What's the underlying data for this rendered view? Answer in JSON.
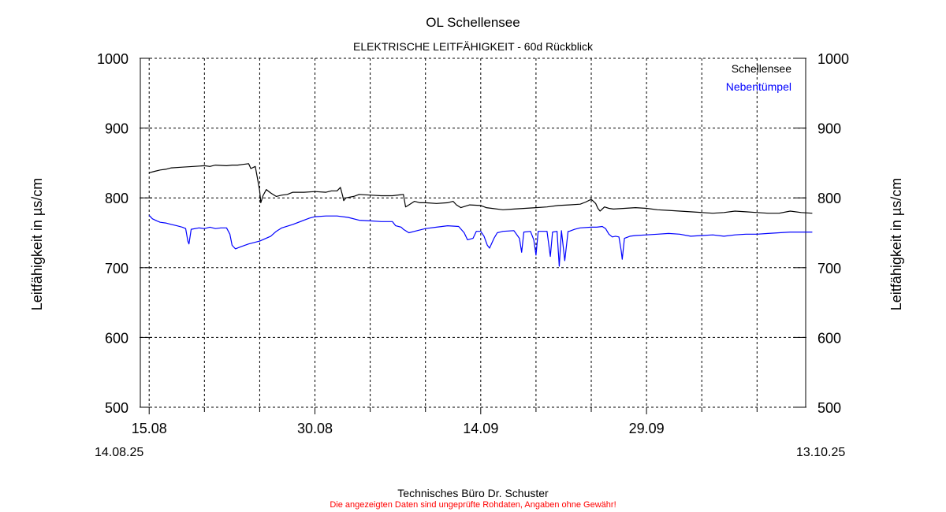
{
  "chart_data": {
    "type": "line",
    "title": "OL Schellensee",
    "subtitle": "ELEKTRISCHE LEITFÄHIGKEIT - 60d Rückblick",
    "ylabel": "Leitfähigkeit in µs/cm",
    "ylabel_right": "Leitfähigkeit in µs/cm",
    "ylim": [
      500,
      1000
    ],
    "yticks": [
      500,
      600,
      700,
      800,
      900,
      1000
    ],
    "xlim": [
      -0.8,
      59.4
    ],
    "x_unit": "days from 15.08",
    "xtick_labels": [
      {
        "x": 0,
        "label": "15.08"
      },
      {
        "x": 15,
        "label": "30.08"
      },
      {
        "x": 30,
        "label": "14.09"
      },
      {
        "x": 45,
        "label": "29.09"
      }
    ],
    "minor_ticks": [
      5,
      10,
      20,
      25,
      35,
      40,
      50,
      55
    ],
    "date_range": {
      "start": "14.08.25",
      "end": "13.10.25"
    },
    "grid": true,
    "legend_position": "top-right",
    "series": [
      {
        "name": "Schellensee",
        "color": "#000000",
        "points": [
          [
            0,
            836
          ],
          [
            0.5,
            838
          ],
          [
            1,
            840
          ],
          [
            1.5,
            841
          ],
          [
            2,
            843
          ],
          [
            3,
            844
          ],
          [
            4,
            845
          ],
          [
            5,
            846
          ],
          [
            5.5,
            845
          ],
          [
            6,
            847
          ],
          [
            7,
            846
          ],
          [
            7.5,
            847
          ],
          [
            8,
            847
          ],
          [
            8.5,
            848
          ],
          [
            9,
            849
          ],
          [
            9.2,
            842
          ],
          [
            9.6,
            845
          ],
          [
            9.8,
            828
          ],
          [
            10,
            810
          ],
          [
            10.1,
            793
          ],
          [
            10.3,
            803
          ],
          [
            10.6,
            812
          ],
          [
            11,
            807
          ],
          [
            11.5,
            802
          ],
          [
            12,
            804
          ],
          [
            12.5,
            805
          ],
          [
            13,
            808
          ],
          [
            14,
            808
          ],
          [
            15,
            809
          ],
          [
            16,
            808
          ],
          [
            16.5,
            810
          ],
          [
            17,
            810
          ],
          [
            17.3,
            815
          ],
          [
            17.5,
            803
          ],
          [
            17.6,
            796
          ],
          [
            17.8,
            800
          ],
          [
            18.5,
            802
          ],
          [
            19,
            805
          ],
          [
            20,
            804
          ],
          [
            21,
            803
          ],
          [
            22,
            803
          ],
          [
            23,
            805
          ],
          [
            23.1,
            796
          ],
          [
            23.2,
            787
          ],
          [
            23.5,
            790
          ],
          [
            24,
            795
          ],
          [
            24.5,
            793
          ],
          [
            25,
            793
          ],
          [
            26,
            792
          ],
          [
            27,
            793
          ],
          [
            27.5,
            795
          ],
          [
            27.8,
            790
          ],
          [
            28.2,
            786
          ],
          [
            29,
            790
          ],
          [
            30,
            789
          ],
          [
            30.5,
            786
          ],
          [
            31,
            785
          ],
          [
            32,
            783
          ],
          [
            33,
            784
          ],
          [
            34,
            785
          ],
          [
            35,
            786
          ],
          [
            36,
            787
          ],
          [
            37,
            789
          ],
          [
            38,
            790
          ],
          [
            39,
            791
          ],
          [
            39.5,
            794
          ],
          [
            40,
            798
          ],
          [
            40.4,
            792
          ],
          [
            40.6,
            785
          ],
          [
            40.8,
            781
          ],
          [
            41.2,
            787
          ],
          [
            41.6,
            785
          ],
          [
            42,
            784
          ],
          [
            43,
            785
          ],
          [
            44,
            786
          ],
          [
            45,
            785
          ],
          [
            46,
            783
          ],
          [
            47,
            782
          ],
          [
            48,
            781
          ],
          [
            49,
            780
          ],
          [
            50,
            779
          ],
          [
            51,
            778
          ],
          [
            52,
            779
          ],
          [
            53,
            781
          ],
          [
            54,
            780
          ],
          [
            55,
            779
          ],
          [
            56,
            778
          ],
          [
            57,
            778
          ],
          [
            58,
            781
          ],
          [
            59,
            779
          ],
          [
            60,
            778
          ]
        ]
      },
      {
        "name": "Nebentümpel",
        "color": "#0000ff",
        "points": [
          [
            0,
            775
          ],
          [
            0.3,
            770
          ],
          [
            0.7,
            767
          ],
          [
            1,
            765
          ],
          [
            1.5,
            764
          ],
          [
            2,
            762
          ],
          [
            2.5,
            760
          ],
          [
            3,
            758
          ],
          [
            3.3,
            756
          ],
          [
            3.5,
            738
          ],
          [
            3.6,
            734
          ],
          [
            3.8,
            755
          ],
          [
            4.5,
            757
          ],
          [
            5,
            756
          ],
          [
            5.5,
            758
          ],
          [
            6,
            756
          ],
          [
            6.5,
            757
          ],
          [
            7,
            757
          ],
          [
            7.3,
            748
          ],
          [
            7.5,
            732
          ],
          [
            7.8,
            727
          ],
          [
            8.3,
            730
          ],
          [
            9,
            734
          ],
          [
            10,
            738
          ],
          [
            11,
            745
          ],
          [
            11.5,
            752
          ],
          [
            12,
            757
          ],
          [
            13,
            762
          ],
          [
            14,
            768
          ],
          [
            14.5,
            771
          ],
          [
            15,
            773
          ],
          [
            16,
            774
          ],
          [
            17,
            774
          ],
          [
            18,
            772
          ],
          [
            19,
            768
          ],
          [
            20,
            767
          ],
          [
            21,
            766
          ],
          [
            22,
            766
          ],
          [
            22.3,
            760
          ],
          [
            22.8,
            758
          ],
          [
            23,
            755
          ],
          [
            23.5,
            750
          ],
          [
            24,
            752
          ],
          [
            25,
            756
          ],
          [
            26,
            758
          ],
          [
            27,
            760
          ],
          [
            28,
            759
          ],
          [
            28.5,
            750
          ],
          [
            28.8,
            740
          ],
          [
            29.3,
            742
          ],
          [
            29.6,
            752
          ],
          [
            30,
            752
          ],
          [
            30.3,
            745
          ],
          [
            30.6,
            732
          ],
          [
            30.8,
            728
          ],
          [
            31.2,
            742
          ],
          [
            31.5,
            750
          ],
          [
            32,
            752
          ],
          [
            33,
            753
          ],
          [
            33.5,
            742
          ],
          [
            33.7,
            722
          ],
          [
            33.9,
            751
          ],
          [
            34.5,
            752
          ],
          [
            34.8,
            740
          ],
          [
            35,
            718
          ],
          [
            35.2,
            752
          ],
          [
            36,
            752
          ],
          [
            36.3,
            716
          ],
          [
            36.5,
            751
          ],
          [
            36.9,
            752
          ],
          [
            37.1,
            702
          ],
          [
            37.3,
            753
          ],
          [
            37.6,
            710
          ],
          [
            37.9,
            752
          ],
          [
            38,
            752
          ],
          [
            38.5,
            755
          ],
          [
            39,
            757
          ],
          [
            40,
            758
          ],
          [
            40.5,
            758
          ],
          [
            41,
            759
          ],
          [
            41.3,
            756
          ],
          [
            41.6,
            748
          ],
          [
            41.9,
            744
          ],
          [
            42.2,
            745
          ],
          [
            42.5,
            744
          ],
          [
            42.7,
            725
          ],
          [
            42.8,
            712
          ],
          [
            43,
            742
          ],
          [
            43.5,
            745
          ],
          [
            44,
            746
          ],
          [
            45,
            747
          ],
          [
            46,
            748
          ],
          [
            47,
            749
          ],
          [
            48,
            748
          ],
          [
            49,
            745
          ],
          [
            50,
            746
          ],
          [
            51,
            747
          ],
          [
            52,
            745
          ],
          [
            53,
            747
          ],
          [
            54,
            748
          ],
          [
            55,
            748
          ],
          [
            56,
            749
          ],
          [
            57,
            750
          ],
          [
            58,
            751
          ],
          [
            59,
            751
          ],
          [
            60,
            751
          ]
        ]
      }
    ]
  },
  "footer": {
    "credit": "Technisches Büro Dr. Schuster",
    "disclaimer": "Die angezeigten Daten sind ungeprüfte Rohdaten, Angaben ohne Gewähr!",
    "disclaimer_color": "#ff0000"
  }
}
